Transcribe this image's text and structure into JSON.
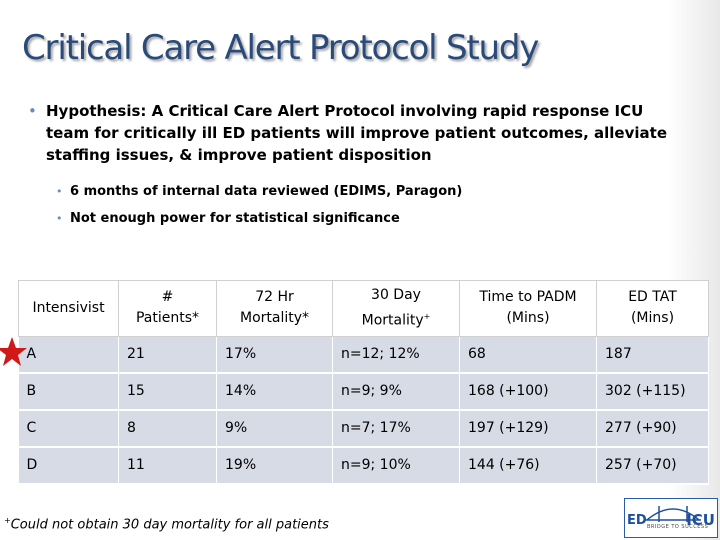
{
  "slide": {
    "title": "Critical Care Alert Protocol Study",
    "hypothesis": "Hypothesis: A Critical Care Alert Protocol involving rapid response ICU team for critically ill ED patients will improve patient outcomes, alleviate staffing issues, & improve patient disposition",
    "sub_bullets": [
      "6 months of internal data reviewed (EDIMS, Paragon)",
      "Not enough power for statistical significance"
    ],
    "bullet_glyph": "•",
    "star_color": "#d01818",
    "title_color": "#2a4a7a"
  },
  "table": {
    "headers": [
      "Intensivist",
      "# Patients*",
      "72 Hr Mortality*",
      "30 Day Mortality+",
      "Time to PADM (Mins)",
      "ED TAT (Mins)"
    ],
    "header_lines": [
      [
        "Intensivist"
      ],
      [
        "#",
        "Patients*"
      ],
      [
        "72 Hr",
        "Mortality*"
      ],
      [
        "30 Day",
        "Mortality"
      ],
      [
        "Time to PADM",
        "(Mins)"
      ],
      [
        "ED TAT",
        "(Mins)"
      ]
    ],
    "superscript_plus": "+",
    "rows": [
      [
        "A",
        "21",
        "17%",
        "n=12;  12%",
        "68",
        "187"
      ],
      [
        "B",
        "15",
        "14%",
        "n=9;  9%",
        "168  (+100)",
        "302  (+115)"
      ],
      [
        "C",
        "8",
        "9%",
        "n=7;  17%",
        "197  (+129)",
        "277  (+90)"
      ],
      [
        "D",
        "11",
        "19%",
        "n=9;  10%",
        "144  (+76)",
        "257  (+70)"
      ]
    ]
  },
  "footnote": {
    "marker": "+",
    "text": "Could not obtain 30 day mortality for all patients"
  },
  "logo": {
    "left": "ED",
    "right": "ICU",
    "tagline": "BRIDGE TO SUCCESS"
  }
}
